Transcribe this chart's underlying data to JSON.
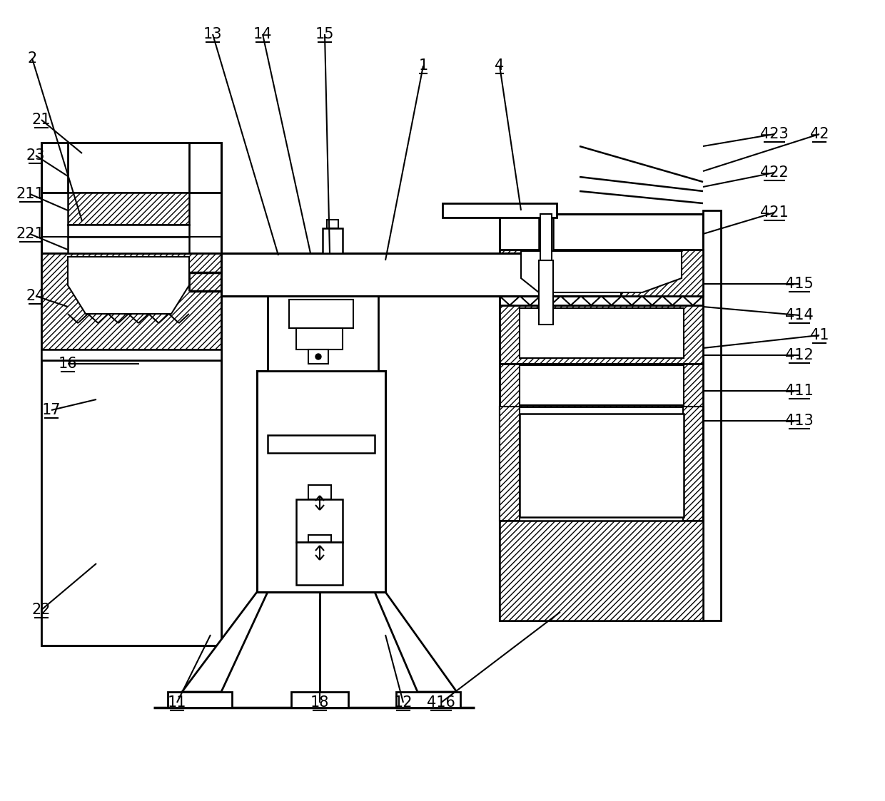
{
  "figsize": [
    12.4,
    11.23
  ],
  "dpi": 100,
  "bg": "#ffffff",
  "labels": [
    [
      "2",
      45,
      82,
      115,
      310,
      false
    ],
    [
      "21",
      58,
      168,
      115,
      215,
      true
    ],
    [
      "23",
      50,
      218,
      95,
      247,
      true
    ],
    [
      "211",
      42,
      272,
      95,
      295,
      true
    ],
    [
      "221",
      42,
      328,
      95,
      350,
      true
    ],
    [
      "24",
      50,
      415,
      95,
      430,
      true
    ],
    [
      "16",
      95,
      510,
      195,
      510,
      true
    ],
    [
      "17",
      72,
      575,
      135,
      560,
      true
    ],
    [
      "22",
      58,
      855,
      135,
      790,
      true
    ],
    [
      "1",
      593,
      92,
      540,
      365,
      true
    ],
    [
      "4",
      700,
      92,
      730,
      295,
      true
    ],
    [
      "13",
      298,
      48,
      390,
      358,
      true
    ],
    [
      "14",
      368,
      48,
      435,
      355,
      true
    ],
    [
      "15",
      455,
      48,
      462,
      355,
      true
    ],
    [
      "11",
      248,
      985,
      295,
      890,
      true
    ],
    [
      "12",
      565,
      985,
      540,
      890,
      true
    ],
    [
      "18",
      448,
      985,
      448,
      840,
      true
    ],
    [
      "41",
      1148,
      470,
      985,
      488,
      true
    ],
    [
      "411",
      1120,
      548,
      985,
      548,
      true
    ],
    [
      "412",
      1120,
      498,
      985,
      498,
      true
    ],
    [
      "413",
      1120,
      590,
      985,
      590,
      true
    ],
    [
      "414",
      1120,
      442,
      985,
      430,
      true
    ],
    [
      "415",
      1120,
      398,
      985,
      398,
      true
    ],
    [
      "416",
      618,
      985,
      785,
      858,
      true
    ],
    [
      "42",
      1148,
      188,
      985,
      240,
      true
    ],
    [
      "421",
      1085,
      298,
      985,
      328,
      true
    ],
    [
      "422",
      1085,
      242,
      985,
      262,
      true
    ],
    [
      "423",
      1085,
      188,
      985,
      205,
      true
    ]
  ]
}
